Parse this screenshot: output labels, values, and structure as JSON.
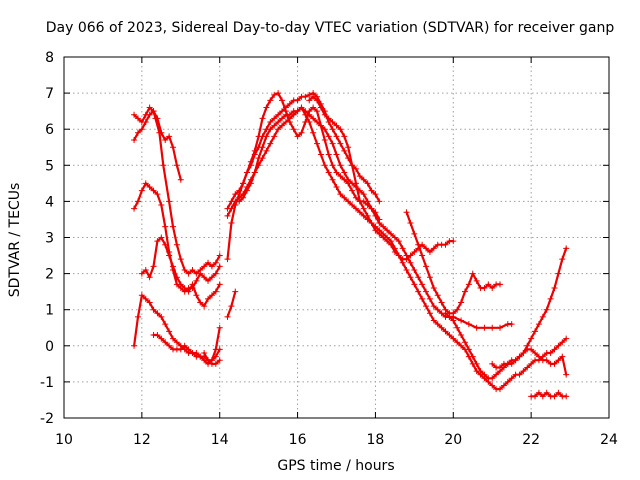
{
  "chart_data": {
    "type": "scatter",
    "title": "Day 066 of 2023, Sidereal Day-to-day VTEC variation (SDTVAR) for receiver ganp",
    "xlabel": "GPS time / hours",
    "ylabel": "SDTVAR / TECUs",
    "xlim": [
      10,
      24
    ],
    "ylim": [
      -2,
      8
    ],
    "xticks": [
      "10",
      "12",
      "14",
      "16",
      "18",
      "20",
      "22",
      "24"
    ],
    "yticks": [
      "-2",
      "-1",
      "0",
      "1",
      "2",
      "3",
      "4",
      "5",
      "6",
      "7",
      "8"
    ],
    "grid": true,
    "marker": "+",
    "color": "#ee0000",
    "series": [
      {
        "name": "s1",
        "x": [
          11.8,
          11.9,
          12.0,
          12.1,
          12.2,
          12.3,
          12.4,
          12.5,
          12.6,
          12.7,
          12.8,
          12.9,
          13.0
        ],
        "y": [
          6.4,
          6.3,
          6.2,
          6.4,
          6.6,
          6.5,
          6.3,
          5.9,
          5.7,
          5.8,
          5.5,
          5.0,
          4.6
        ]
      },
      {
        "name": "s2",
        "x": [
          11.8,
          11.9,
          12.0,
          12.1,
          12.2,
          12.3,
          12.35,
          12.45,
          12.55,
          12.7,
          12.8,
          12.9,
          13.0,
          13.1,
          13.2,
          13.3,
          13.4,
          13.5,
          13.6,
          13.7,
          13.8,
          13.9,
          14.0
        ],
        "y": [
          5.7,
          5.9,
          6.0,
          6.2,
          6.4,
          6.5,
          6.3,
          5.9,
          5.0,
          4.0,
          3.3,
          2.8,
          2.4,
          2.1,
          2.0,
          2.1,
          2.0,
          2.1,
          2.2,
          2.3,
          2.2,
          2.3,
          2.5
        ]
      },
      {
        "name": "s3",
        "x": [
          11.8,
          11.9,
          12.0,
          12.1,
          12.2,
          12.3,
          12.4,
          12.5,
          12.6,
          12.7,
          12.8,
          12.9,
          13.0,
          13.1,
          13.2,
          13.3,
          13.4,
          13.5,
          13.6,
          13.7,
          13.8,
          13.9,
          14.0
        ],
        "y": [
          3.8,
          4.0,
          4.3,
          4.5,
          4.4,
          4.3,
          4.2,
          3.9,
          3.3,
          2.6,
          2.1,
          1.7,
          1.6,
          1.5,
          1.6,
          1.6,
          1.8,
          2.0,
          1.9,
          1.8,
          1.9,
          2.0,
          2.2
        ]
      },
      {
        "name": "s4",
        "x": [
          11.8,
          11.9,
          12.0,
          12.1,
          12.2,
          12.3,
          12.4,
          12.5,
          12.6,
          12.7,
          12.8,
          12.9,
          13.0,
          13.1,
          13.2,
          13.3,
          13.4,
          13.5,
          13.6,
          13.7,
          13.8,
          13.9,
          14.0
        ],
        "y": [
          0.0,
          0.8,
          1.4,
          1.3,
          1.2,
          1.0,
          0.9,
          0.8,
          0.6,
          0.4,
          0.2,
          0.1,
          0.0,
          -0.1,
          -0.2,
          -0.2,
          -0.3,
          -0.3,
          -0.4,
          -0.5,
          -0.4,
          -0.3,
          -0.1
        ]
      },
      {
        "name": "s5",
        "x": [
          12.0,
          12.1,
          12.2,
          12.3,
          12.4,
          12.5,
          12.6,
          12.7,
          12.8,
          12.9,
          13.0,
          13.1,
          13.2,
          13.3,
          13.4,
          13.5,
          13.6,
          13.7,
          13.8,
          13.9,
          14.0
        ],
        "y": [
          2.0,
          2.1,
          1.9,
          2.2,
          2.9,
          3.0,
          2.8,
          2.5,
          2.2,
          1.9,
          1.7,
          1.6,
          1.5,
          1.7,
          1.4,
          1.2,
          1.1,
          1.3,
          1.4,
          1.5,
          1.7
        ]
      },
      {
        "name": "s6",
        "x": [
          12.3,
          12.4,
          12.5,
          12.6,
          12.7,
          12.8,
          12.9,
          13.0,
          13.1,
          13.2,
          13.3,
          13.4,
          13.5,
          13.6,
          13.7,
          13.8,
          13.9,
          14.0
        ],
        "y": [
          0.3,
          0.3,
          0.2,
          0.1,
          0.0,
          -0.1,
          -0.1,
          -0.1,
          0.0,
          -0.1,
          -0.2,
          -0.2,
          -0.3,
          -0.3,
          -0.4,
          -0.5,
          -0.5,
          -0.4
        ]
      },
      {
        "name": "s7",
        "x": [
          13.6,
          13.7,
          13.8,
          13.9,
          14.0
        ],
        "y": [
          -0.2,
          -0.4,
          -0.4,
          -0.1,
          0.5
        ]
      },
      {
        "name": "s8",
        "x": [
          14.2,
          14.3,
          14.4
        ],
        "y": [
          0.8,
          1.1,
          1.5
        ]
      },
      {
        "name": "s9",
        "x": [
          14.2,
          14.3,
          14.4,
          14.5,
          14.6,
          14.7,
          14.8,
          14.9,
          15.0,
          15.1,
          15.2,
          15.3,
          15.4,
          15.5,
          15.6,
          15.7,
          15.8,
          15.9,
          16.0,
          16.1,
          16.2,
          16.3,
          16.4,
          16.5,
          16.6,
          16.7,
          16.8,
          16.9,
          17.0,
          17.1,
          17.2,
          17.3,
          17.4,
          17.5,
          17.6,
          17.7,
          17.8,
          17.9,
          18.0,
          18.1
        ],
        "y": [
          2.4,
          3.4,
          3.9,
          4.2,
          4.5,
          4.8,
          5.1,
          5.4,
          5.8,
          6.3,
          6.6,
          6.8,
          6.95,
          7.0,
          6.8,
          6.5,
          6.2,
          6.0,
          5.8,
          5.9,
          6.2,
          6.5,
          6.6,
          6.5,
          6.1,
          5.7,
          5.3,
          5.0,
          4.8,
          4.7,
          4.6,
          4.5,
          4.3,
          4.1,
          4.0,
          4.0,
          3.9,
          3.8,
          3.7,
          3.5
        ]
      },
      {
        "name": "s10",
        "x": [
          14.2,
          14.3,
          14.4,
          14.5,
          14.6,
          14.7,
          14.8,
          14.9,
          15.0,
          15.1,
          15.2,
          15.3,
          15.4,
          15.5,
          15.6,
          15.7,
          15.8,
          15.9,
          16.0,
          16.1,
          16.2,
          16.3,
          16.4,
          16.5,
          16.6,
          16.7,
          16.8,
          16.9,
          17.0,
          17.1,
          17.2,
          17.3,
          17.4,
          17.5,
          17.6,
          17.7,
          17.8,
          17.9,
          18.0,
          18.1
        ],
        "y": [
          3.8,
          4.0,
          4.2,
          4.3,
          4.5,
          4.8,
          5.0,
          5.3,
          5.5,
          5.8,
          6.0,
          6.2,
          6.3,
          6.4,
          6.5,
          6.6,
          6.7,
          6.8,
          6.8,
          6.9,
          6.9,
          6.95,
          7.0,
          6.9,
          6.7,
          6.5,
          6.2,
          6.0,
          5.8,
          5.6,
          5.4,
          5.2,
          5.0,
          4.9,
          4.7,
          4.6,
          4.5,
          4.3,
          4.2,
          4.0
        ]
      },
      {
        "name": "s11",
        "x": [
          14.2,
          14.3,
          14.4,
          14.5,
          14.6,
          14.7,
          14.8,
          14.9,
          15.0,
          15.1,
          15.2,
          15.3,
          15.4,
          15.5,
          15.6,
          15.7,
          15.8,
          15.9,
          16.0,
          16.1,
          16.2,
          16.3,
          16.4,
          16.5,
          16.6,
          16.7,
          16.8,
          16.9,
          17.0,
          17.1,
          17.2,
          17.3,
          17.4,
          17.5,
          17.6,
          17.7,
          17.8,
          17.9,
          18.0,
          18.1,
          18.2,
          18.3,
          18.4,
          18.5,
          18.6,
          18.7,
          18.8,
          18.9,
          19.0,
          19.1,
          19.2,
          19.3,
          19.4,
          19.5,
          19.6,
          19.7,
          19.8,
          19.9,
          20.0,
          20.2,
          20.4,
          20.6,
          20.8,
          21.0,
          21.2,
          21.4,
          21.5
        ],
        "y": [
          3.6,
          3.8,
          4.0,
          4.1,
          4.2,
          4.4,
          4.6,
          4.8,
          5.0,
          5.2,
          5.4,
          5.6,
          5.8,
          6.0,
          6.1,
          6.2,
          6.3,
          6.4,
          6.5,
          6.6,
          6.5,
          6.4,
          6.3,
          6.2,
          6.1,
          6.0,
          5.8,
          5.6,
          5.3,
          5.0,
          4.8,
          4.6,
          4.5,
          4.4,
          4.3,
          4.2,
          4.0,
          3.8,
          3.6,
          3.4,
          3.3,
          3.2,
          3.1,
          3.0,
          2.9,
          2.7,
          2.5,
          2.3,
          2.1,
          1.9,
          1.7,
          1.5,
          1.3,
          1.1,
          1.0,
          0.9,
          0.8,
          0.8,
          0.8,
          0.7,
          0.6,
          0.5,
          0.5,
          0.5,
          0.5,
          0.6,
          0.6
        ]
      },
      {
        "name": "s12",
        "x": [
          14.5,
          14.6,
          14.7,
          14.8,
          14.9,
          15.0,
          15.1,
          15.2,
          15.3,
          15.4,
          15.5,
          15.6,
          15.7,
          15.8,
          15.9,
          16.0,
          16.1,
          16.2,
          16.3,
          16.4,
          16.5,
          16.6,
          16.7,
          16.8,
          16.9,
          17.0,
          17.1,
          17.2,
          17.3,
          17.4,
          17.5,
          17.6,
          17.7,
          17.8,
          17.9,
          18.0,
          18.1,
          18.2,
          18.3,
          18.4,
          18.5,
          18.6,
          18.7,
          18.8,
          18.9,
          19.0,
          19.1,
          19.2,
          19.3,
          19.4,
          19.5,
          19.6,
          19.7,
          19.8,
          19.9,
          20.0,
          20.1,
          20.2,
          20.3,
          20.4,
          20.5,
          20.6,
          20.7,
          20.8,
          20.9,
          21.0,
          21.1,
          21.2,
          21.3,
          21.4,
          21.5,
          21.6,
          21.7,
          21.8,
          21.9,
          22.0,
          22.1,
          22.2,
          22.3,
          22.4,
          22.5,
          22.6,
          22.7,
          22.8,
          22.9
        ],
        "y": [
          4.0,
          4.1,
          4.3,
          4.5,
          4.8,
          5.2,
          5.5,
          5.8,
          6.0,
          6.1,
          6.2,
          6.3,
          6.4,
          6.4,
          6.5,
          6.5,
          6.6,
          6.4,
          6.2,
          5.9,
          5.6,
          5.3,
          5.0,
          4.8,
          4.6,
          4.4,
          4.2,
          4.1,
          4.0,
          3.9,
          3.8,
          3.7,
          3.6,
          3.5,
          3.4,
          3.3,
          3.2,
          3.1,
          3.0,
          2.9,
          2.7,
          2.5,
          2.3,
          2.1,
          1.9,
          1.7,
          1.5,
          1.3,
          1.1,
          0.9,
          0.7,
          0.6,
          0.5,
          0.4,
          0.3,
          0.2,
          0.1,
          0.0,
          -0.1,
          -0.3,
          -0.5,
          -0.7,
          -0.8,
          -0.9,
          -1.0,
          -1.1,
          -1.2,
          -1.2,
          -1.1,
          -1.0,
          -0.9,
          -0.8,
          -0.8,
          -0.7,
          -0.6,
          -0.5,
          -0.4,
          -0.4,
          -0.3,
          -0.2,
          -0.2,
          -0.1,
          0.0,
          0.1,
          0.2
        ]
      },
      {
        "name": "s13",
        "x": [
          16.3,
          16.4,
          16.5,
          16.6,
          16.7,
          16.8,
          16.9,
          17.0,
          17.1,
          17.2,
          17.3,
          17.4,
          17.5,
          17.6,
          17.7,
          17.8,
          17.9,
          18.0,
          18.1,
          18.2,
          18.3,
          18.4,
          18.5,
          18.6,
          18.7,
          18.8,
          18.9,
          19.0,
          19.1,
          19.2,
          19.3,
          19.4,
          19.5,
          19.6,
          19.7,
          19.8,
          19.9,
          20.0
        ],
        "y": [
          6.8,
          6.9,
          6.8,
          6.6,
          6.4,
          6.3,
          6.2,
          6.1,
          6.0,
          5.8,
          5.5,
          5.0,
          4.5,
          4.0,
          3.8,
          3.6,
          3.4,
          3.2,
          3.1,
          3.0,
          2.9,
          2.8,
          2.6,
          2.5,
          2.4,
          2.4,
          2.5,
          2.6,
          2.7,
          2.8,
          2.7,
          2.6,
          2.7,
          2.8,
          2.8,
          2.8,
          2.9,
          2.9
        ]
      },
      {
        "name": "s14",
        "x": [
          18.8,
          18.9,
          19.0,
          19.1,
          19.2,
          19.3,
          19.4,
          19.5,
          19.6,
          19.7,
          19.8,
          19.9,
          20.0,
          20.1,
          20.2,
          20.3,
          20.4,
          20.5,
          20.6,
          20.7,
          20.8,
          20.9,
          21.0,
          21.1,
          21.2
        ],
        "y": [
          3.7,
          3.4,
          3.1,
          2.8,
          2.5,
          2.2,
          1.9,
          1.6,
          1.4,
          1.2,
          1.0,
          0.9,
          0.9,
          1.0,
          1.2,
          1.5,
          1.7,
          2.0,
          1.8,
          1.6,
          1.6,
          1.7,
          1.6,
          1.7,
          1.7
        ]
      },
      {
        "name": "s15",
        "x": [
          19.8,
          19.9,
          20.0,
          20.1,
          20.2,
          20.3,
          20.4,
          20.5,
          20.6,
          20.7,
          20.8,
          20.9,
          21.0,
          21.1,
          21.2,
          21.3,
          21.4,
          21.5,
          21.6,
          21.7,
          21.8,
          21.9,
          22.0,
          22.1,
          22.2,
          22.3,
          22.4,
          22.5,
          22.6,
          22.7,
          22.8,
          22.9
        ],
        "y": [
          0.9,
          0.8,
          0.7,
          0.5,
          0.3,
          0.1,
          -0.1,
          -0.3,
          -0.5,
          -0.7,
          -0.8,
          -0.9,
          -0.9,
          -0.8,
          -0.7,
          -0.6,
          -0.5,
          -0.5,
          -0.4,
          -0.3,
          -0.2,
          0.0,
          0.2,
          0.4,
          0.6,
          0.8,
          1.0,
          1.3,
          1.6,
          2.0,
          2.4,
          2.7
        ]
      },
      {
        "name": "s16",
        "x": [
          21.0,
          21.1,
          21.2,
          21.3,
          21.4,
          21.5,
          21.6,
          21.7,
          21.8,
          21.9,
          22.0,
          22.1,
          22.2,
          22.3,
          22.4,
          22.5,
          22.6,
          22.7,
          22.8,
          22.9
        ],
        "y": [
          -0.5,
          -0.6,
          -0.6,
          -0.5,
          -0.5,
          -0.4,
          -0.4,
          -0.3,
          -0.2,
          -0.1,
          -0.1,
          -0.2,
          -0.3,
          -0.4,
          -0.4,
          -0.5,
          -0.5,
          -0.4,
          -0.3,
          -0.8
        ]
      },
      {
        "name": "s17",
        "x": [
          22.0,
          22.1,
          22.2,
          22.3,
          22.4,
          22.5,
          22.6,
          22.7,
          22.8,
          22.9
        ],
        "y": [
          -1.4,
          -1.4,
          -1.3,
          -1.4,
          -1.3,
          -1.4,
          -1.4,
          -1.3,
          -1.4,
          -1.4
        ]
      }
    ]
  }
}
